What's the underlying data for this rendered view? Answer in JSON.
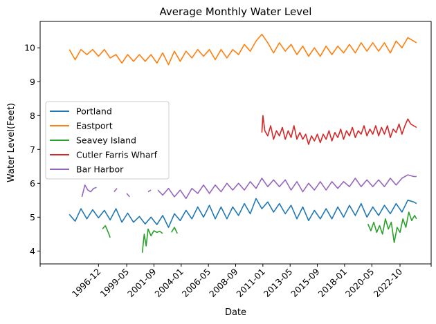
{
  "chart_data": {
    "type": "line",
    "title": "Average Monthly Water Level",
    "xlabel": "Date",
    "ylabel": "Water Level(Feet)",
    "x_range": [
      "1991-12",
      "2025-06"
    ],
    "ylim": [
      3.62,
      10.78
    ],
    "y_ticks": [
      4,
      5,
      6,
      7,
      8,
      9,
      10
    ],
    "x_ticks": [
      "1996-12",
      "1999-05",
      "2001-09",
      "2004-01",
      "2006-05",
      "2008-09",
      "2011-01",
      "2013-05",
      "2015-09",
      "2018-01",
      "2020-05",
      "2022-10"
    ],
    "grid": false,
    "legend_position": "center-left",
    "series": [
      {
        "name": "Portland",
        "color": "#1f77b4",
        "points": [
          [
            "1994-06",
            5.08
          ],
          [
            "1994-12",
            4.88
          ],
          [
            "1995-06",
            5.25
          ],
          [
            "1995-12",
            4.95
          ],
          [
            "1996-06",
            5.22
          ],
          [
            "1996-12",
            4.98
          ],
          [
            "1997-06",
            5.2
          ],
          [
            "1997-12",
            4.92
          ],
          [
            "1998-06",
            5.25
          ],
          [
            "1998-12",
            4.85
          ],
          [
            "1999-06",
            5.12
          ],
          [
            "1999-12",
            4.85
          ],
          [
            "2000-06",
            5.02
          ],
          [
            "2000-12",
            4.8
          ],
          [
            "2001-06",
            5.0
          ],
          [
            "2001-12",
            4.78
          ],
          [
            "2002-06",
            5.05
          ],
          [
            "2002-12",
            4.7
          ],
          [
            "2003-06",
            5.1
          ],
          [
            "2003-12",
            4.9
          ],
          [
            "2004-06",
            5.2
          ],
          [
            "2004-12",
            4.95
          ],
          [
            "2005-06",
            5.3
          ],
          [
            "2005-12",
            5.0
          ],
          [
            "2006-06",
            5.35
          ],
          [
            "2006-12",
            4.95
          ],
          [
            "2007-06",
            5.3
          ],
          [
            "2007-12",
            4.95
          ],
          [
            "2008-06",
            5.3
          ],
          [
            "2008-12",
            5.05
          ],
          [
            "2009-06",
            5.4
          ],
          [
            "2009-12",
            5.1
          ],
          [
            "2010-06",
            5.55
          ],
          [
            "2010-12",
            5.25
          ],
          [
            "2011-06",
            5.45
          ],
          [
            "2011-12",
            5.15
          ],
          [
            "2012-06",
            5.4
          ],
          [
            "2012-12",
            5.1
          ],
          [
            "2013-06",
            5.35
          ],
          [
            "2013-12",
            4.95
          ],
          [
            "2014-06",
            5.3
          ],
          [
            "2014-12",
            4.9
          ],
          [
            "2015-06",
            5.2
          ],
          [
            "2015-12",
            4.95
          ],
          [
            "2016-06",
            5.25
          ],
          [
            "2016-12",
            4.95
          ],
          [
            "2017-06",
            5.3
          ],
          [
            "2017-12",
            5.0
          ],
          [
            "2018-06",
            5.35
          ],
          [
            "2018-12",
            5.05
          ],
          [
            "2019-06",
            5.4
          ],
          [
            "2019-12",
            5.0
          ],
          [
            "2020-06",
            5.3
          ],
          [
            "2020-12",
            5.05
          ],
          [
            "2021-06",
            5.35
          ],
          [
            "2021-12",
            5.1
          ],
          [
            "2022-06",
            5.4
          ],
          [
            "2022-12",
            5.15
          ],
          [
            "2023-06",
            5.5
          ],
          [
            "2023-12",
            5.45
          ],
          [
            "2024-03",
            5.4
          ]
        ]
      },
      {
        "name": "Eastport",
        "color": "#ff7f0e",
        "points": [
          [
            "1994-06",
            9.95
          ],
          [
            "1994-12",
            9.65
          ],
          [
            "1995-06",
            9.95
          ],
          [
            "1995-12",
            9.8
          ],
          [
            "1996-06",
            9.95
          ],
          [
            "1996-12",
            9.75
          ],
          [
            "1997-06",
            9.95
          ],
          [
            "1997-12",
            9.7
          ],
          [
            "1998-06",
            9.8
          ],
          [
            "1998-12",
            9.55
          ],
          [
            "1999-06",
            9.8
          ],
          [
            "1999-12",
            9.6
          ],
          [
            "2000-06",
            9.8
          ],
          [
            "2000-12",
            9.6
          ],
          [
            "2001-06",
            9.8
          ],
          [
            "2001-12",
            9.55
          ],
          [
            "2002-06",
            9.85
          ],
          [
            "2002-12",
            9.5
          ],
          [
            "2003-06",
            9.9
          ],
          [
            "2003-12",
            9.6
          ],
          [
            "2004-06",
            9.9
          ],
          [
            "2004-12",
            9.7
          ],
          [
            "2005-06",
            9.95
          ],
          [
            "2005-12",
            9.75
          ],
          [
            "2006-06",
            9.95
          ],
          [
            "2006-12",
            9.65
          ],
          [
            "2007-06",
            9.95
          ],
          [
            "2007-12",
            9.7
          ],
          [
            "2008-06",
            9.95
          ],
          [
            "2008-12",
            9.8
          ],
          [
            "2009-06",
            10.1
          ],
          [
            "2009-12",
            9.9
          ],
          [
            "2010-06",
            10.2
          ],
          [
            "2010-12",
            10.4
          ],
          [
            "2011-06",
            10.15
          ],
          [
            "2011-12",
            9.85
          ],
          [
            "2012-06",
            10.15
          ],
          [
            "2012-12",
            9.9
          ],
          [
            "2013-06",
            10.1
          ],
          [
            "2013-12",
            9.8
          ],
          [
            "2014-06",
            10.05
          ],
          [
            "2014-12",
            9.75
          ],
          [
            "2015-06",
            10.0
          ],
          [
            "2015-12",
            9.75
          ],
          [
            "2016-06",
            10.05
          ],
          [
            "2016-12",
            9.8
          ],
          [
            "2017-06",
            10.05
          ],
          [
            "2017-12",
            9.85
          ],
          [
            "2018-06",
            10.1
          ],
          [
            "2018-12",
            9.85
          ],
          [
            "2019-06",
            10.15
          ],
          [
            "2019-12",
            9.9
          ],
          [
            "2020-06",
            10.15
          ],
          [
            "2020-12",
            9.9
          ],
          [
            "2021-06",
            10.15
          ],
          [
            "2021-12",
            9.85
          ],
          [
            "2022-06",
            10.2
          ],
          [
            "2022-12",
            10.0
          ],
          [
            "2023-06",
            10.3
          ],
          [
            "2023-12",
            10.2
          ],
          [
            "2024-03",
            10.15
          ]
        ]
      },
      {
        "name": "Seavey Island",
        "color": "#2ca02c",
        "points": [
          [
            "1997-04",
            4.65
          ],
          [
            "1997-07",
            4.75
          ],
          [
            "1997-10",
            4.55
          ],
          [
            "1997-12",
            4.4
          ],
          null,
          [
            "2000-09",
            3.95
          ],
          [
            "2000-11",
            4.5
          ],
          [
            "2001-01",
            4.15
          ],
          [
            "2001-03",
            4.65
          ],
          [
            "2001-06",
            4.45
          ],
          [
            "2001-09",
            4.6
          ],
          [
            "2001-12",
            4.55
          ],
          [
            "2002-03",
            4.58
          ],
          [
            "2002-06",
            4.52
          ],
          null,
          [
            "2003-03",
            4.55
          ],
          [
            "2003-06",
            4.7
          ],
          [
            "2003-09",
            4.52
          ],
          null,
          [
            "2020-01",
            4.8
          ],
          [
            "2020-04",
            4.6
          ],
          [
            "2020-07",
            4.85
          ],
          [
            "2020-10",
            4.55
          ],
          [
            "2021-01",
            4.75
          ],
          [
            "2021-04",
            4.5
          ],
          [
            "2021-07",
            4.95
          ],
          [
            "2021-10",
            4.65
          ],
          [
            "2022-01",
            4.85
          ],
          [
            "2022-04",
            4.25
          ],
          [
            "2022-07",
            4.7
          ],
          [
            "2022-10",
            4.55
          ],
          [
            "2023-01",
            4.95
          ],
          [
            "2023-04",
            4.7
          ],
          [
            "2023-07",
            5.15
          ],
          [
            "2023-10",
            4.9
          ],
          [
            "2024-01",
            5.05
          ],
          [
            "2024-03",
            4.95
          ]
        ]
      },
      {
        "name": "Cutler Farris Wharf",
        "color": "#d62728",
        "points": [
          [
            "2010-12",
            7.5
          ],
          [
            "2011-01",
            8.0
          ],
          [
            "2011-03",
            7.55
          ],
          [
            "2011-06",
            7.4
          ],
          [
            "2011-09",
            7.7
          ],
          [
            "2011-12",
            7.3
          ],
          [
            "2012-03",
            7.55
          ],
          [
            "2012-06",
            7.4
          ],
          [
            "2012-09",
            7.65
          ],
          [
            "2012-12",
            7.3
          ],
          [
            "2013-03",
            7.55
          ],
          [
            "2013-06",
            7.35
          ],
          [
            "2013-09",
            7.7
          ],
          [
            "2013-12",
            7.3
          ],
          [
            "2014-03",
            7.5
          ],
          [
            "2014-06",
            7.3
          ],
          [
            "2014-09",
            7.45
          ],
          [
            "2014-12",
            7.15
          ],
          [
            "2015-03",
            7.4
          ],
          [
            "2015-06",
            7.25
          ],
          [
            "2015-09",
            7.45
          ],
          [
            "2015-12",
            7.2
          ],
          [
            "2016-03",
            7.45
          ],
          [
            "2016-06",
            7.3
          ],
          [
            "2016-09",
            7.55
          ],
          [
            "2016-12",
            7.25
          ],
          [
            "2017-03",
            7.5
          ],
          [
            "2017-06",
            7.35
          ],
          [
            "2017-09",
            7.6
          ],
          [
            "2017-12",
            7.3
          ],
          [
            "2018-03",
            7.55
          ],
          [
            "2018-06",
            7.4
          ],
          [
            "2018-09",
            7.65
          ],
          [
            "2018-12",
            7.35
          ],
          [
            "2019-03",
            7.55
          ],
          [
            "2019-06",
            7.45
          ],
          [
            "2019-09",
            7.7
          ],
          [
            "2019-12",
            7.4
          ],
          [
            "2020-03",
            7.6
          ],
          [
            "2020-06",
            7.45
          ],
          [
            "2020-09",
            7.7
          ],
          [
            "2020-12",
            7.4
          ],
          [
            "2021-03",
            7.65
          ],
          [
            "2021-06",
            7.45
          ],
          [
            "2021-09",
            7.7
          ],
          [
            "2021-12",
            7.35
          ],
          [
            "2022-03",
            7.6
          ],
          [
            "2022-06",
            7.5
          ],
          [
            "2022-09",
            7.75
          ],
          [
            "2022-12",
            7.45
          ],
          [
            "2023-03",
            7.7
          ],
          [
            "2023-06",
            7.9
          ],
          [
            "2023-09",
            7.75
          ],
          [
            "2023-12",
            7.7
          ],
          [
            "2024-03",
            7.65
          ]
        ]
      },
      {
        "name": "Bar Harbor",
        "color": "#9467bd",
        "points": [
          [
            "1995-07",
            5.6
          ],
          [
            "1995-10",
            5.95
          ],
          [
            "1996-01",
            5.8
          ],
          [
            "1996-04",
            5.75
          ],
          [
            "1996-07",
            5.85
          ],
          [
            "1996-10",
            5.88
          ],
          null,
          [
            "1998-04",
            5.75
          ],
          [
            "1998-07",
            5.85
          ],
          null,
          [
            "1999-05",
            5.7
          ],
          [
            "1999-08",
            5.6
          ],
          null,
          [
            "2000-05",
            5.72
          ],
          null,
          [
            "2001-03",
            5.75
          ],
          [
            "2001-06",
            5.8
          ],
          null,
          [
            "2002-01",
            5.8
          ],
          [
            "2002-06",
            5.65
          ],
          [
            "2002-12",
            5.85
          ],
          [
            "2003-06",
            5.6
          ],
          [
            "2003-12",
            5.8
          ],
          [
            "2004-06",
            5.55
          ],
          [
            "2004-12",
            5.85
          ],
          [
            "2005-06",
            5.7
          ],
          [
            "2005-12",
            5.95
          ],
          [
            "2006-06",
            5.7
          ],
          [
            "2006-12",
            5.95
          ],
          [
            "2007-06",
            5.75
          ],
          [
            "2007-12",
            6.0
          ],
          [
            "2008-06",
            5.8
          ],
          [
            "2008-12",
            6.0
          ],
          [
            "2009-06",
            5.8
          ],
          [
            "2009-12",
            6.05
          ],
          [
            "2010-06",
            5.85
          ],
          [
            "2010-12",
            6.15
          ],
          [
            "2011-06",
            5.9
          ],
          [
            "2011-12",
            6.1
          ],
          [
            "2012-06",
            5.9
          ],
          [
            "2012-12",
            6.1
          ],
          [
            "2013-06",
            5.8
          ],
          [
            "2013-12",
            6.05
          ],
          [
            "2014-06",
            5.75
          ],
          [
            "2014-12",
            6.0
          ],
          [
            "2015-06",
            5.8
          ],
          [
            "2015-12",
            6.05
          ],
          [
            "2016-06",
            5.8
          ],
          [
            "2016-12",
            6.05
          ],
          [
            "2017-06",
            5.85
          ],
          [
            "2017-12",
            6.05
          ],
          [
            "2018-06",
            5.9
          ],
          [
            "2018-12",
            6.15
          ],
          [
            "2019-06",
            5.9
          ],
          [
            "2019-12",
            6.1
          ],
          [
            "2020-06",
            5.9
          ],
          [
            "2020-12",
            6.1
          ],
          [
            "2021-06",
            5.9
          ],
          [
            "2021-12",
            6.15
          ],
          [
            "2022-06",
            5.95
          ],
          [
            "2022-12",
            6.15
          ],
          [
            "2023-06",
            6.25
          ],
          [
            "2023-12",
            6.2
          ],
          [
            "2024-03",
            6.2
          ]
        ]
      }
    ]
  }
}
